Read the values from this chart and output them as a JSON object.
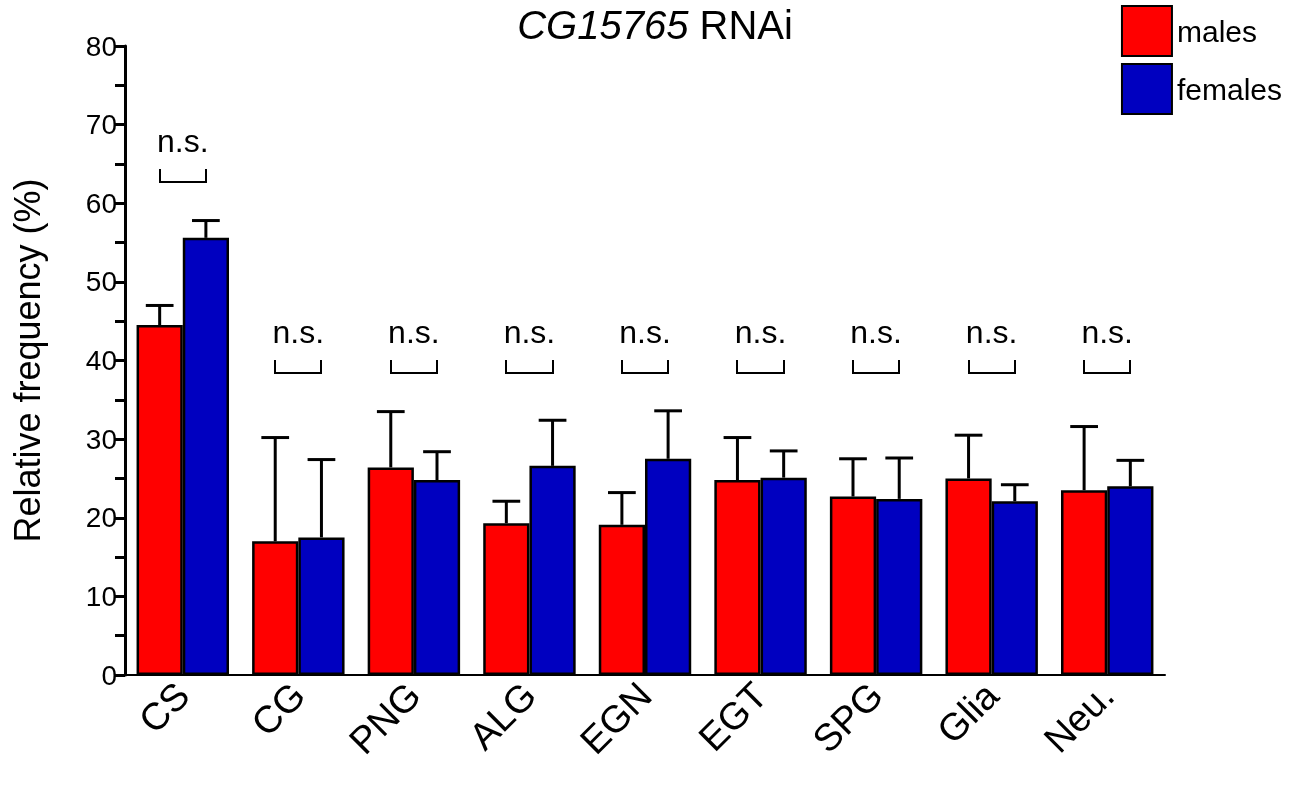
{
  "chart_data": {
    "type": "bar",
    "title": "CG15765 RNAi",
    "ylabel": "Relative frequency (%)",
    "categories": [
      "CS",
      "CG",
      "PNG",
      "ALG",
      "EGN",
      "EGT",
      "SPG",
      "Glia",
      "Neu."
    ],
    "series": [
      {
        "name": "males",
        "color": "#ff0000",
        "values": [
          44.5,
          17.0,
          26.4,
          19.3,
          19.1,
          24.8,
          22.7,
          25.0,
          23.5
        ],
        "errors": [
          [
            44.5,
            47.0
          ],
          [
            17.0,
            30.2
          ],
          [
            26.4,
            33.5
          ],
          [
            19.3,
            22.1
          ],
          [
            19.1,
            23.2
          ],
          [
            24.8,
            30.2
          ],
          [
            22.7,
            27.5
          ],
          [
            25.0,
            30.5
          ],
          [
            23.5,
            31.6
          ]
        ]
      },
      {
        "name": "females",
        "color": "#0000c0",
        "values": [
          55.6,
          17.5,
          24.8,
          26.6,
          27.5,
          25.1,
          22.4,
          22.1,
          24.0
        ],
        "errors": [
          [
            55.6,
            57.8
          ],
          [
            17.5,
            27.4
          ],
          [
            24.8,
            28.4
          ],
          [
            26.6,
            32.4
          ],
          [
            27.5,
            33.6
          ],
          [
            25.1,
            28.5
          ],
          [
            22.4,
            27.6
          ],
          [
            22.1,
            24.2
          ],
          [
            24.0,
            27.3
          ]
        ]
      }
    ],
    "ylim": [
      0,
      80
    ],
    "yticks": [
      0,
      {
        "value": 5,
        "label": null
      },
      10,
      {
        "value": 15,
        "label": null
      },
      20,
      {
        "value": 25,
        "label": null
      },
      30,
      {
        "value": 35,
        "label": null
      },
      40,
      {
        "value": 45,
        "label": null
      },
      50,
      {
        "value": 55,
        "label": null
      },
      60,
      {
        "value": 65,
        "label": null
      },
      70,
      {
        "value": 75,
        "label": null
      },
      80
    ],
    "annotations": [
      "n.s.",
      "n.s.",
      "n.s.",
      "n.s.",
      "n.s.",
      "n.s.",
      "n.s.",
      "n.s.",
      "n.s."
    ],
    "legend": "top right",
    "grid": false
  }
}
